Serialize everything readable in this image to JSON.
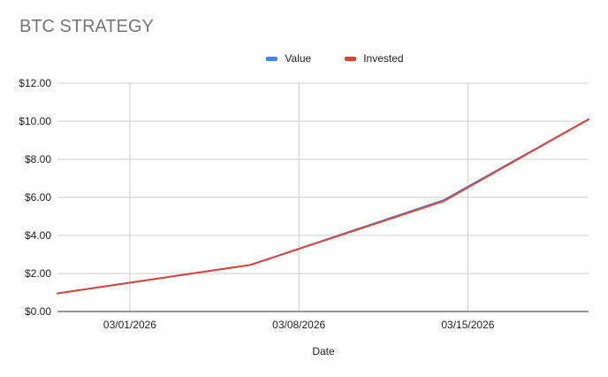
{
  "chart_data": {
    "type": "line",
    "title": "BTC STRATEGY",
    "xlabel": "Date",
    "ylabel": "",
    "x": [
      "02/26/2026",
      "03/06/2026",
      "03/14/2026",
      "03/20/2026"
    ],
    "x_ticks": [
      "03/01/2026",
      "03/08/2026",
      "03/15/2026"
    ],
    "x_range": [
      "02/26/2026",
      "03/20/2026"
    ],
    "y_ticks": [
      "$0.00",
      "$2.00",
      "$4.00",
      "$6.00",
      "$8.00",
      "$10.00",
      "$12.00"
    ],
    "ylim": [
      0,
      12
    ],
    "grid": true,
    "legend_position": "top",
    "series": [
      {
        "name": "Value",
        "color": "#4285f4",
        "values": [
          0.95,
          2.45,
          5.85,
          10.1
        ]
      },
      {
        "name": "Invested",
        "color": "#db4437",
        "values": [
          0.95,
          2.45,
          5.8,
          10.1
        ]
      }
    ]
  }
}
